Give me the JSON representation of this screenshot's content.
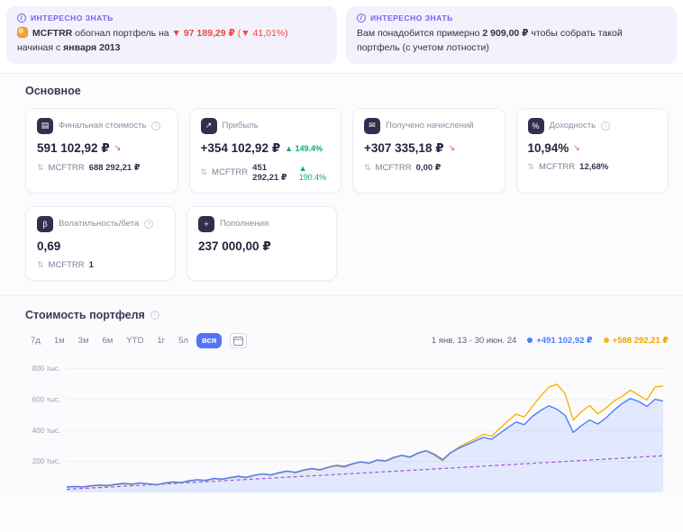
{
  "icons": {
    "info": "i",
    "trend_down_arrow": "↘",
    "sort_arrows": "⇅",
    "calendar": "calendar-grid",
    "fun_fact_left_emoji": "tiger-face"
  },
  "fun_facts": {
    "badge": "ИНТЕРЕСНО ЗНАТЬ",
    "left": {
      "ticker": "MCFTRR",
      "text_mid": "обогнал портфель на",
      "delta_value": "▼ 97 189,29 ₽",
      "delta_percent": "(▼ 41,01%)",
      "text_tail": "начиная с",
      "start_date": "января 2013"
    },
    "right": {
      "text_before": "Вам понадобится примерно",
      "amount": "2 909,00 ₽",
      "text_after": "чтобы собрать такой портфель (с учетом лотности)"
    }
  },
  "main": {
    "title": "Основное",
    "benchmark": "MCFTRR",
    "cards": [
      {
        "label": "Финальная стоимость",
        "icon_glyph": "▤",
        "value": "591 102,92 ₽",
        "benchmark_name": "MCFTRR",
        "benchmark_value": "688 292,21 ₽"
      },
      {
        "label": "Прибыль",
        "icon_glyph": "↗",
        "value": "+354 102,92 ₽",
        "value_change": "▲ 149.4%",
        "benchmark_name": "MCFTRR",
        "benchmark_value": "451 292,21 ₽",
        "benchmark_change": "▲ 190.4%"
      },
      {
        "label": "Получено начислений",
        "icon_glyph": "✉",
        "value": "+307 335,18 ₽",
        "benchmark_name": "MCFTRR",
        "benchmark_value": "0,00 ₽"
      },
      {
        "label": "Доходность",
        "icon_glyph": "%",
        "value": "10,94%",
        "benchmark_name": "MCFTRR",
        "benchmark_value": "12,68%"
      },
      {
        "label": "Волатильность/бета",
        "icon_glyph": "β",
        "value": "0,69",
        "benchmark_name": "MCFTRR",
        "benchmark_value": "1"
      },
      {
        "label": "Пополнения",
        "icon_glyph": "+",
        "value": "237 000,00 ₽"
      }
    ]
  },
  "portfolio_chart": {
    "title": "Стоимость портфеля",
    "periods": [
      "7д",
      "1м",
      "3м",
      "6м",
      "YTD",
      "1г",
      "5л",
      "вся"
    ],
    "selected_period": "вся",
    "date_range": "1 янв. 13 - 30 июн. 24",
    "legend": [
      {
        "label": "+491 102,92 ₽",
        "color": "#4d7cfe"
      },
      {
        "label": "+588 292,21 ₽",
        "color": "#f7b500"
      }
    ]
  },
  "chart_data": {
    "type": "area",
    "title": "Стоимость портфеля",
    "x_range_label": "1 янв. 13 - 30 июн. 24",
    "unit": "тыс. ₽",
    "ymax_thousands": 850,
    "grid": true,
    "yticks": [
      {
        "value": 800,
        "label": "800 тыс."
      },
      {
        "value": 600,
        "label": "600 тыс."
      },
      {
        "value": 400,
        "label": "400 тыс."
      },
      {
        "value": 200,
        "label": "200 тыс."
      }
    ],
    "series": [
      {
        "name": "Пополнения",
        "color": "#b44bce",
        "width": 1.2,
        "dash": "4 3",
        "x": [
          0,
          0.2,
          0.4,
          0.6,
          0.8,
          1
        ],
        "values": [
          20,
          62,
          105,
          148,
          192,
          237
        ]
      },
      {
        "name": "MCFTRR",
        "color": "#f7b500",
        "width": 1.4,
        "values": [
          35,
          37,
          34,
          41,
          45,
          42,
          50,
          55,
          51,
          60,
          55,
          48,
          59,
          66,
          62,
          73,
          80,
          75,
          88,
          84,
          94,
          102,
          95,
          110,
          118,
          111,
          126,
          136,
          127,
          142,
          152,
          144,
          161,
          172,
          164,
          183,
          196,
          187,
          208,
          201,
          223,
          238,
          226,
          252,
          268,
          241,
          205,
          256,
          292,
          322,
          346,
          376,
          364,
          412,
          462,
          506,
          488,
          556,
          622,
          680,
          700,
          638,
          468,
          522,
          562,
          508,
          546,
          592,
          622,
          662,
          628,
          598,
          682,
          688
        ]
      },
      {
        "name": "Портфель",
        "color": "#4d7cfe",
        "width": 1.4,
        "fill": "rgba(77,124,254,0.14)",
        "values": [
          35,
          38,
          36,
          43,
          48,
          45,
          53,
          58,
          54,
          62,
          56,
          50,
          61,
          68,
          64,
          76,
          82,
          78,
          90,
          86,
          96,
          104,
          98,
          112,
          120,
          114,
          128,
          138,
          130,
          145,
          155,
          147,
          163,
          175,
          168,
          186,
          198,
          190,
          210,
          204,
          226,
          240,
          229,
          255,
          270,
          247,
          212,
          258,
          286,
          310,
          332,
          356,
          344,
          382,
          420,
          455,
          438,
          492,
          530,
          560,
          538,
          498,
          388,
          432,
          468,
          442,
          482,
          532,
          576,
          608,
          588,
          556,
          602,
          591
        ]
      }
    ]
  }
}
